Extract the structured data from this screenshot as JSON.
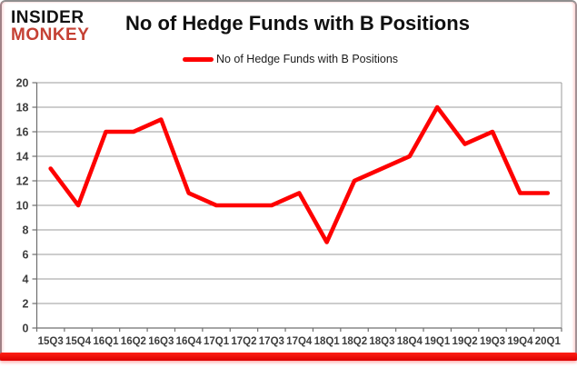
{
  "logo": {
    "line1": "INSIDER",
    "line2": "MONKEY"
  },
  "title": "No of Hedge Funds with B Positions",
  "legend": {
    "label": "No of Hedge Funds with B Positions",
    "color": "#fe0000"
  },
  "chart_data": {
    "type": "line",
    "title": "No of Hedge Funds with B Positions",
    "categories": [
      "15Q3",
      "15Q4",
      "16Q1",
      "16Q2",
      "16Q3",
      "16Q4",
      "17Q1",
      "17Q2",
      "17Q3",
      "17Q4",
      "18Q1",
      "18Q2",
      "18Q3",
      "18Q4",
      "19Q1",
      "19Q2",
      "19Q3",
      "19Q4",
      "20Q1"
    ],
    "series": [
      {
        "name": "No of Hedge Funds with B Positions",
        "color": "#fe0000",
        "values": [
          13,
          10,
          16,
          16,
          17,
          11,
          10,
          10,
          10,
          11,
          7,
          12,
          13,
          14,
          18,
          15,
          16,
          11,
          11
        ]
      }
    ],
    "xlabel": "",
    "ylabel": "",
    "ylim": [
      0,
      20
    ],
    "ytick_step": 2,
    "grid": true,
    "legend_position": "top"
  },
  "colors": {
    "line_red": "#fe0000",
    "logo_red": "#c54134",
    "gridline": "#9b9b9b",
    "axis": "#6f6f6f",
    "tick_text": "#3d3d3d",
    "frame_bottom_red": "#ee0000"
  }
}
